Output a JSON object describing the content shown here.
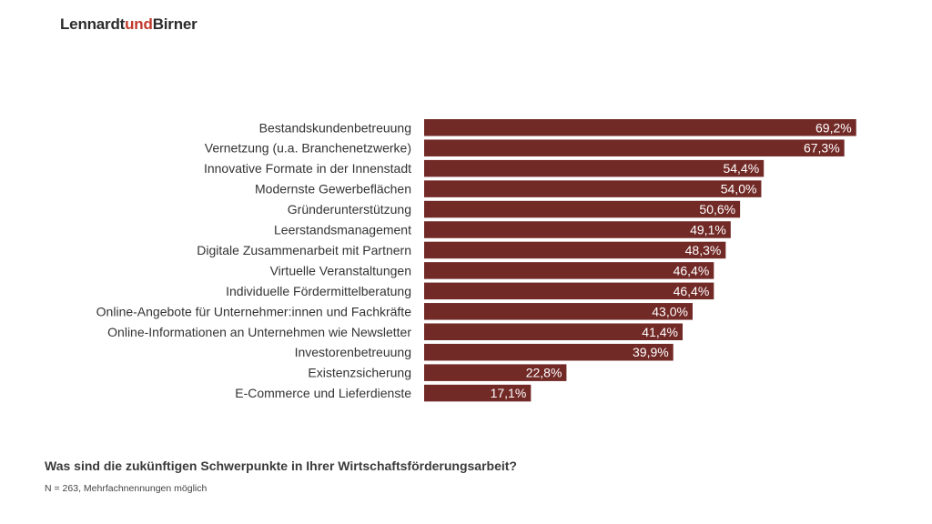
{
  "brand": {
    "part1": "Lennardt",
    "part2": "und",
    "part3": "Birner",
    "accent_color": "#c0392b",
    "text_color": "#2b2b2b"
  },
  "footer": {
    "question": "Was sind die zukünftigen Schwerpunkte in Ihrer Wirtschaftsförderungsarbeit?",
    "note": "N = 263, Mehrfachnennungen möglich"
  },
  "chart_data": {
    "type": "bar",
    "orientation": "horizontal",
    "bar_color": "#722a27",
    "xlim": [
      0,
      100
    ],
    "grid": false,
    "categories": [
      "Bestandskundenbetreuung",
      "Vernetzung (u.a. Branchenetzwerke)",
      "Innovative Formate in der Innenstadt",
      "Modernste Gewerbeflächen",
      "Gründerunterstützung",
      "Leerstandsmanagement",
      "Digitale Zusammenarbeit mit Partnern",
      "Virtuelle Veranstaltungen",
      "Individuelle Fördermittelberatung",
      "Online-Angebote für Unternehmer:innen und Fachkräfte",
      "Online-Informationen an Unternehmen wie Newsletter",
      "Investorenbetreuung",
      "Existenzsicherung",
      "E-Commerce und Lieferdienste"
    ],
    "values": [
      69.2,
      67.3,
      54.4,
      54.0,
      50.6,
      49.1,
      48.3,
      46.4,
      46.4,
      43.0,
      41.4,
      39.9,
      22.8,
      17.1
    ],
    "value_labels": [
      "69,2%",
      "67,3%",
      "54,4%",
      "54,0%",
      "50,6%",
      "49,1%",
      "48,3%",
      "46,4%",
      "46,4%",
      "43,0%",
      "41,4%",
      "39,9%",
      "22,8%",
      "17,1%"
    ]
  }
}
